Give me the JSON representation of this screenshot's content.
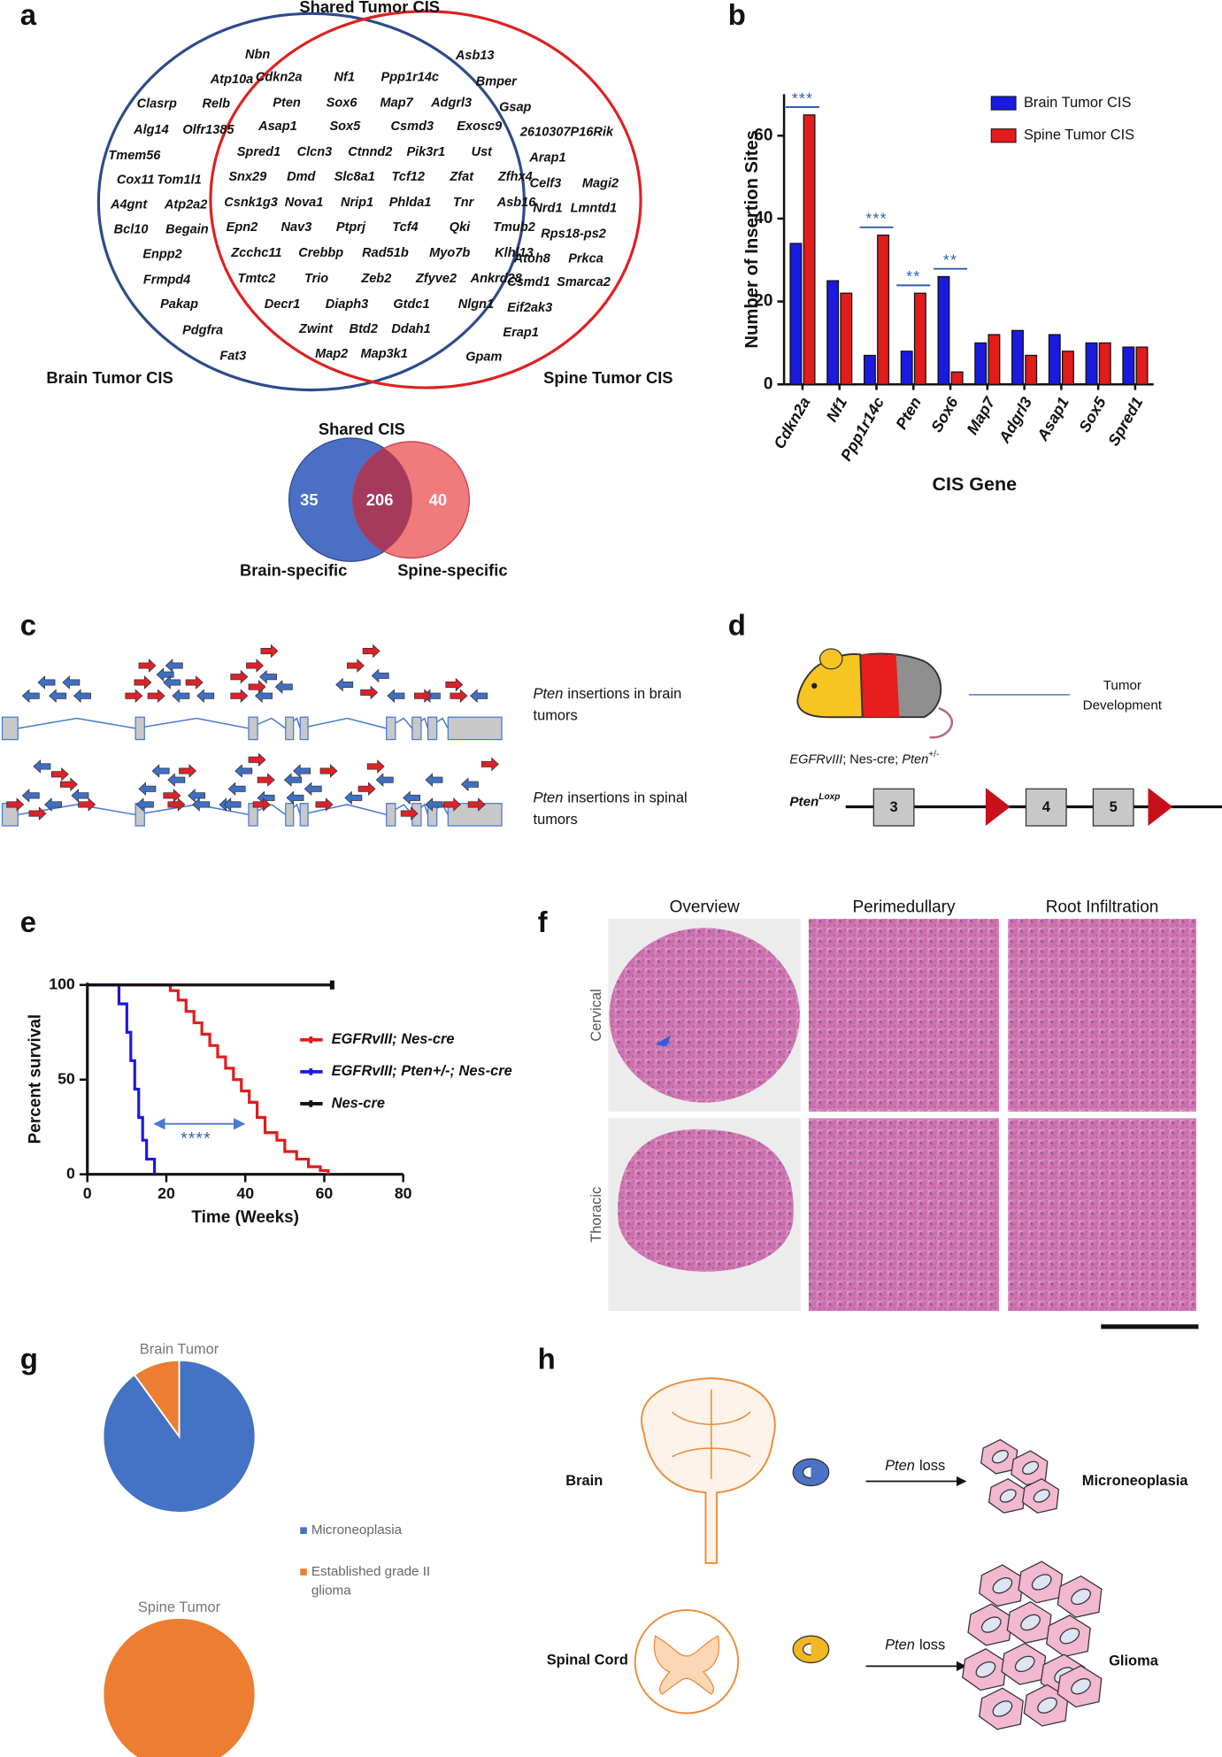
{
  "panel_labels": [
    "a",
    "b",
    "c",
    "d",
    "e",
    "f",
    "g",
    "h"
  ],
  "venn": {
    "title_shared": "Shared Tumor CIS",
    "label_brain": "Brain Tumor CIS",
    "label_spine": "Spine Tumor CIS",
    "brain_genes": [
      "Nbn",
      "Atp10a",
      "Clasrp",
      "Relb",
      "Alg14",
      "Olfr1385",
      "Tmem56",
      "Cox11",
      "Tom1l1",
      "A4gnt",
      "Atp2a2",
      "Bcl10",
      "Begain",
      "Enpp2",
      "Frmpd4",
      "Pakap",
      "Pdgfra",
      "Fat3"
    ],
    "shared_gene_rows": [
      [
        "Cdkn2a",
        "Nf1",
        "Ppp1r14c"
      ],
      [
        "Pten",
        "Sox6",
        "Map7",
        "Adgrl3"
      ],
      [
        "Asap1",
        "Sox5",
        "Csmd3",
        "Exosc9"
      ],
      [
        "Spred1",
        "Clcn3",
        "Ctnnd2",
        "Pik3r1",
        "Ust"
      ],
      [
        "Snx29",
        "Dmd",
        "Slc8a1",
        "Tcf12",
        "Zfat",
        "Zfhx4"
      ],
      [
        "Csnk1g3",
        "Nova1",
        "Nrip1",
        "Phlda1",
        "Tnr",
        "Asb16"
      ],
      [
        "Epn2",
        "Nav3",
        "Ptprj",
        "Tcf4",
        "Qki",
        "Tmub2"
      ],
      [
        "Zcchc11",
        "Crebbp",
        "Rad51b",
        "Myo7b",
        "Klhl13"
      ],
      [
        "Tmtc2",
        "Trio",
        "Zeb2",
        "Zfyve2",
        "Ankrd28"
      ],
      [
        "Decr1",
        "Diaph3",
        "Gtdc1",
        "Nlgn1"
      ],
      [
        "Zwint",
        "Btd2",
        "Ddah1"
      ],
      [
        "Map2",
        "Map3k1"
      ]
    ],
    "spine_genes": [
      "Asb13",
      "Bmper",
      "Gsap",
      "2610307P16Rik",
      "Arap1",
      "Celf3",
      "Magi2",
      "Nrd1",
      "Lmntd1",
      "Rps18-ps2",
      "Atoh8",
      "Prkca",
      "Csmd1",
      "Smarca2",
      "Eif2ak3",
      "Erap1",
      "Gpam"
    ]
  },
  "shared_cis": {
    "title": "Shared CIS",
    "brain_specific": "35",
    "shared": "206",
    "spine_specific": "40",
    "label_brain": "Brain-specific",
    "label_spine": "Spine-specific"
  },
  "chart_data": [
    {
      "type": "bar",
      "x_label": "CIS Gene",
      "y_label": "Number of Insertion Sites",
      "categories": [
        "Cdkn2a",
        "Nf1",
        "Ppp1r14c",
        "Pten",
        "Sox6",
        "Map7",
        "Adgrl3",
        "Asap1",
        "Sox5",
        "Spred1"
      ],
      "series": [
        {
          "name": "Brain Tumor CIS",
          "color": "#1a1ae0",
          "values": [
            34,
            25,
            7,
            8,
            26,
            10,
            13,
            12,
            10,
            9
          ]
        },
        {
          "name": "Spine Tumor CIS",
          "color": "#e21b1b",
          "values": [
            65,
            22,
            36,
            22,
            3,
            12,
            7,
            8,
            10,
            9
          ]
        }
      ],
      "significance": [
        "***",
        null,
        "***",
        "**",
        "**",
        null,
        null,
        null,
        null,
        null
      ],
      "significance_color": "#2f5fb0",
      "ylim": [
        0,
        70
      ],
      "yticks": [
        0,
        20,
        40,
        60
      ],
      "legend": "upper right"
    },
    {
      "type": "line",
      "drawstyle": "steps",
      "x_label": "Time (Weeks)",
      "y_label": "Percent survival",
      "series": [
        {
          "name": "EGFRvIII; Nes-cre",
          "color": "#e21b1b",
          "x": [
            0,
            21,
            21,
            23,
            23,
            25,
            25,
            27,
            27,
            29,
            29,
            31,
            31,
            33,
            33,
            35,
            35,
            37,
            37,
            39,
            39,
            41,
            41,
            43,
            43,
            45,
            45,
            48,
            48,
            50,
            50,
            53,
            53,
            56,
            56,
            59,
            59,
            61,
            61
          ],
          "values": [
            100,
            100,
            97,
            97,
            92,
            92,
            86,
            86,
            80,
            80,
            74,
            74,
            68,
            68,
            62,
            62,
            56,
            56,
            50,
            50,
            44,
            44,
            38,
            38,
            30,
            30,
            22,
            22,
            18,
            18,
            12,
            12,
            8,
            8,
            4,
            4,
            2,
            2,
            0
          ]
        },
        {
          "name": "EGFRvIII; Pten+/-; Nes-cre",
          "color": "#1a1ae0",
          "x": [
            0,
            8,
            8,
            10,
            10,
            11,
            11,
            12,
            12,
            13,
            13,
            14,
            14,
            15,
            15,
            17,
            17
          ],
          "values": [
            100,
            100,
            90,
            90,
            75,
            75,
            60,
            60,
            45,
            45,
            30,
            30,
            18,
            18,
            8,
            8,
            0
          ]
        },
        {
          "name": "Nes-cre",
          "color": "#111111",
          "x": [
            0,
            62
          ],
          "values": [
            100,
            100
          ]
        }
      ],
      "annotation": "****",
      "annotation_color": "#2f5fb0",
      "xlim": [
        0,
        80
      ],
      "xticks": [
        0,
        20,
        40,
        60,
        80
      ],
      "ylim": [
        0,
        100
      ],
      "yticks": [
        0,
        50,
        100
      ]
    },
    {
      "type": "pie",
      "title": "Brain Tumor",
      "categories": [
        "Microneoplasia",
        "Established grade II glioma"
      ],
      "values": [
        90,
        10
      ],
      "colors": [
        "#4472c4",
        "#ed7d31"
      ]
    },
    {
      "type": "pie",
      "title": "Spine Tumor",
      "values": [
        0,
        100
      ],
      "colors": [
        "#4472c4",
        "#ed7d31"
      ]
    }
  ],
  "panel_c": {
    "rows": [
      {
        "gene": "Pten",
        "line1": "insertions in brain",
        "line2": "tumors"
      },
      {
        "gene": "Pten",
        "line1": "insertions in spinal",
        "line2": "tumors"
      }
    ]
  },
  "panel_d": {
    "outcome": [
      "Tumor",
      "Development"
    ],
    "genotype": {
      "part1": "EGFRvIII",
      "part2": "; Nes-cre; ",
      "gene": "Pten",
      "sup": "+/-"
    },
    "allele": {
      "gene": "Pten",
      "sup": "Loxp"
    },
    "exons": [
      "3",
      "4",
      "5"
    ]
  },
  "panel_f": {
    "columns": [
      "Overview",
      "Perimedullary",
      "Root Infiltration"
    ],
    "rows": [
      "Cervical",
      "Thoracic"
    ]
  },
  "panel_h": {
    "rows": [
      {
        "tissue": "Brain",
        "gene": "Pten",
        "event": "loss",
        "outcome": "Microneoplasia"
      },
      {
        "tissue": "Spinal Cord",
        "gene": "Pten",
        "event": "loss",
        "outcome": "Glioma"
      }
    ]
  }
}
